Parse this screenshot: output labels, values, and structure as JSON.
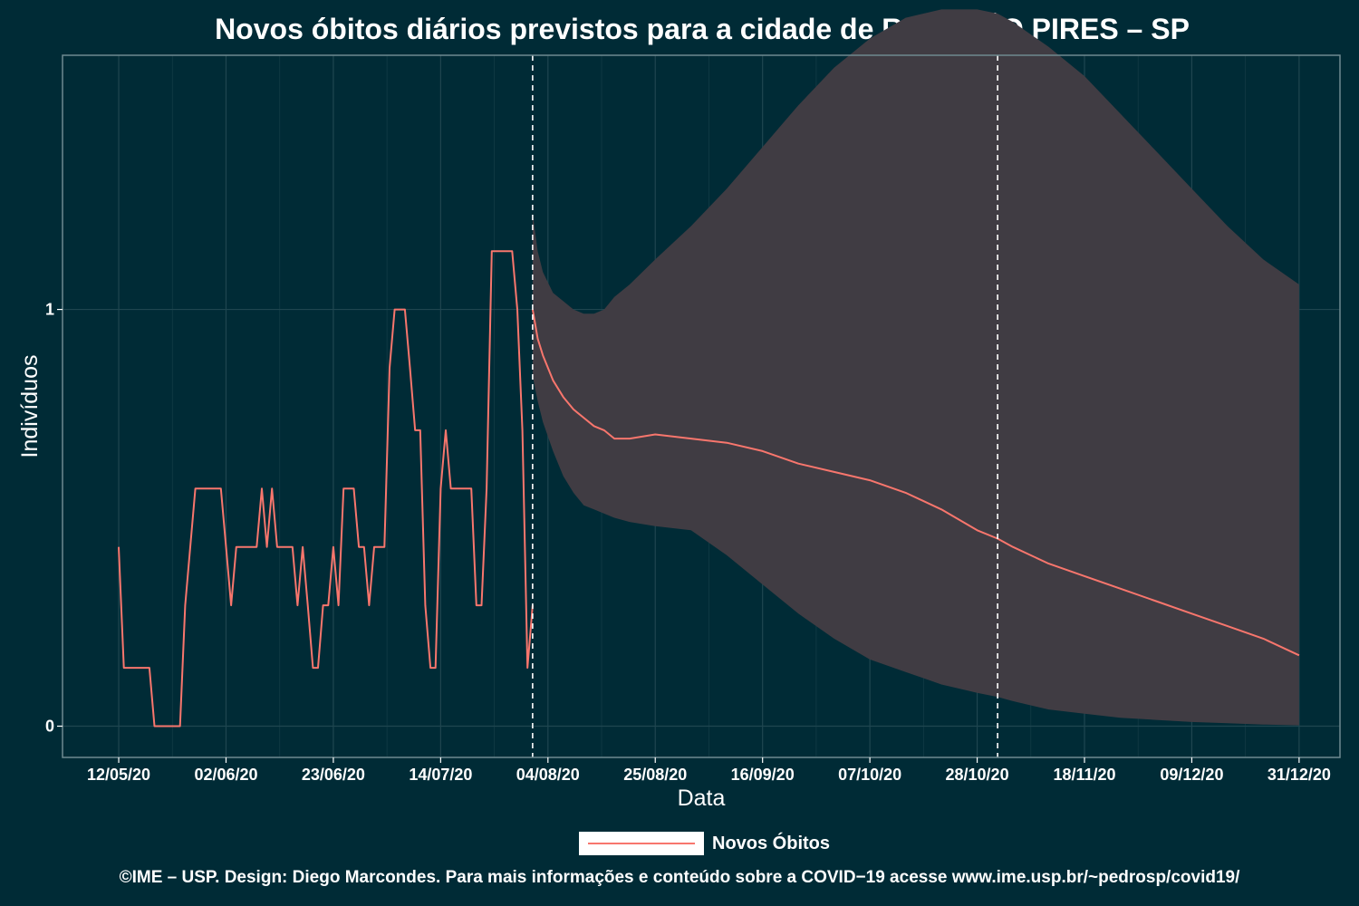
{
  "title": "Novos óbitos diários previstos para a cidade de RIBEIRÃO PIRES – SP",
  "footer": "©IME – USP. Design: Diego Marcondes. Para mais informações e conteúdo sobre a COVID−19 acesse www.ime.usp.br/~pedrosp/covid19/",
  "colors": {
    "background": "#002b36",
    "line": "#f8766d",
    "band": "#403c43",
    "grid": "#1f4650",
    "text": "#ffffff"
  },
  "legend": {
    "label": "Novos Óbitos",
    "position": "bottom"
  },
  "chart_data": {
    "type": "line",
    "title": "Novos óbitos diários previstos para a cidade de RIBEIRÃO PIRES – SP",
    "xlabel": "Data",
    "ylabel": "Indivíduos",
    "x_type": "date",
    "x_tick_labels": [
      "12/05/20",
      "02/06/20",
      "23/06/20",
      "14/07/20",
      "04/08/20",
      "25/08/20",
      "16/09/20",
      "07/10/20",
      "28/10/20",
      "18/11/20",
      "09/12/20",
      "31/12/20"
    ],
    "x_ticks": [
      "2020-05-12",
      "2020-06-02",
      "2020-06-23",
      "2020-07-14",
      "2020-08-04",
      "2020-08-25",
      "2020-09-15",
      "2020-10-06",
      "2020-10-27",
      "2020-11-17",
      "2020-12-08",
      "2020-12-29"
    ],
    "y_ticks": [
      0,
      1
    ],
    "xlim": [
      "2020-05-01",
      "2021-01-06"
    ],
    "ylim": [
      -0.075,
      1.61
    ],
    "grid": true,
    "vlines": [
      "2020-08-01",
      "2020-10-31"
    ],
    "series": [
      {
        "name": "Novos Óbitos",
        "x": [
          "2020-05-12",
          "2020-05-13",
          "2020-05-15",
          "2020-05-16",
          "2020-05-17",
          "2020-05-18",
          "2020-05-19",
          "2020-05-24",
          "2020-05-25",
          "2020-05-26",
          "2020-05-27",
          "2020-05-28",
          "2020-05-29",
          "2020-06-01",
          "2020-06-02",
          "2020-06-03",
          "2020-06-04",
          "2020-06-05",
          "2020-06-06",
          "2020-06-07",
          "2020-06-08",
          "2020-06-09",
          "2020-06-10",
          "2020-06-11",
          "2020-06-12",
          "2020-06-13",
          "2020-06-14",
          "2020-06-15",
          "2020-06-16",
          "2020-06-17",
          "2020-06-18",
          "2020-06-19",
          "2020-06-20",
          "2020-06-21",
          "2020-06-22",
          "2020-06-23",
          "2020-06-24",
          "2020-06-25",
          "2020-06-26",
          "2020-06-27",
          "2020-06-28",
          "2020-06-29",
          "2020-06-30",
          "2020-07-01",
          "2020-07-02",
          "2020-07-03",
          "2020-07-04",
          "2020-07-05",
          "2020-07-07",
          "2020-07-08",
          "2020-07-09",
          "2020-07-10",
          "2020-07-11",
          "2020-07-12",
          "2020-07-13",
          "2020-07-14",
          "2020-07-15",
          "2020-07-16",
          "2020-07-17",
          "2020-07-18",
          "2020-07-19",
          "2020-07-20",
          "2020-07-21",
          "2020-07-22",
          "2020-07-23",
          "2020-07-24",
          "2020-07-25",
          "2020-07-26",
          "2020-07-27",
          "2020-07-28",
          "2020-07-29",
          "2020-07-30",
          "2020-07-31",
          "2020-08-01"
        ],
        "values": [
          0.43,
          0.14,
          0.14,
          0.14,
          0.14,
          0.14,
          0.0,
          0.0,
          0.29,
          0.43,
          0.57,
          0.57,
          0.57,
          0.57,
          0.43,
          0.29,
          0.43,
          0.43,
          0.43,
          0.43,
          0.43,
          0.57,
          0.43,
          0.57,
          0.43,
          0.43,
          0.43,
          0.43,
          0.29,
          0.43,
          0.29,
          0.14,
          0.14,
          0.29,
          0.29,
          0.43,
          0.29,
          0.57,
          0.57,
          0.57,
          0.43,
          0.43,
          0.29,
          0.43,
          0.43,
          0.43,
          0.86,
          1.0,
          1.0,
          0.86,
          0.71,
          0.71,
          0.29,
          0.14,
          0.14,
          0.57,
          0.71,
          0.57,
          0.57,
          0.57,
          0.57,
          0.57,
          0.29,
          0.29,
          0.57,
          1.14,
          1.14,
          1.14,
          1.14,
          1.14,
          1.0,
          0.71,
          0.14,
          0.29
        ]
      }
    ],
    "forecast": {
      "x": [
        "2020-08-01",
        "2020-08-02",
        "2020-08-03",
        "2020-08-05",
        "2020-08-07",
        "2020-08-09",
        "2020-08-11",
        "2020-08-13",
        "2020-08-15",
        "2020-08-17",
        "2020-08-20",
        "2020-08-25",
        "2020-09-01",
        "2020-09-08",
        "2020-09-15",
        "2020-09-22",
        "2020-09-29",
        "2020-10-06",
        "2020-10-13",
        "2020-10-20",
        "2020-10-27",
        "2020-10-31",
        "2020-11-03",
        "2020-11-10",
        "2020-11-17",
        "2020-11-24",
        "2020-12-01",
        "2020-12-08",
        "2020-12-15",
        "2020-12-22",
        "2020-12-29"
      ],
      "mean": [
        1.0,
        0.93,
        0.89,
        0.83,
        0.79,
        0.76,
        0.74,
        0.72,
        0.71,
        0.69,
        0.69,
        0.7,
        0.69,
        0.68,
        0.66,
        0.63,
        0.61,
        0.59,
        0.56,
        0.52,
        0.47,
        0.45,
        0.43,
        0.39,
        0.36,
        0.33,
        0.3,
        0.27,
        0.24,
        0.21,
        0.17
      ],
      "lower": [
        0.84,
        0.78,
        0.73,
        0.66,
        0.6,
        0.56,
        0.53,
        0.52,
        0.51,
        0.5,
        0.49,
        0.48,
        0.47,
        0.41,
        0.34,
        0.27,
        0.21,
        0.16,
        0.13,
        0.1,
        0.08,
        0.07,
        0.06,
        0.04,
        0.03,
        0.02,
        0.015,
        0.01,
        0.007,
        0.004,
        0.002
      ],
      "upper": [
        1.23,
        1.14,
        1.09,
        1.04,
        1.02,
        1.0,
        0.99,
        0.99,
        1.0,
        1.03,
        1.06,
        1.12,
        1.2,
        1.29,
        1.39,
        1.49,
        1.58,
        1.65,
        1.7,
        1.72,
        1.72,
        1.71,
        1.69,
        1.63,
        1.56,
        1.47,
        1.38,
        1.29,
        1.2,
        1.12,
        1.06
      ]
    }
  }
}
